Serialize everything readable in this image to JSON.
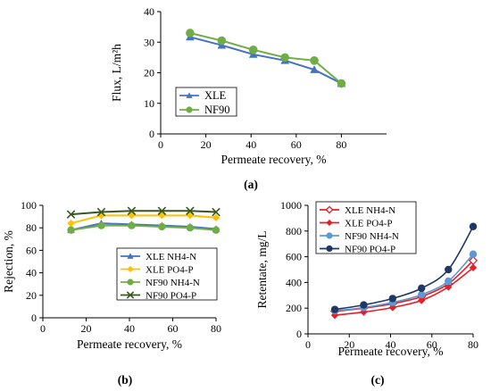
{
  "chart_data": [
    {
      "id": "a",
      "type": "line",
      "panel_label": "(a)",
      "xlabel": "Permeate recovery, %",
      "ylabel": "Flux, L/m²h",
      "xlim": [
        0,
        100
      ],
      "ylim": [
        0,
        40
      ],
      "xticks": [
        0,
        20,
        40,
        60,
        80
      ],
      "yticks": [
        0,
        10,
        20,
        30,
        40
      ],
      "grid": false,
      "legend_position": "bottom-left",
      "series": [
        {
          "name": "XLE",
          "marker": "triangle",
          "color": "#4472C4",
          "x": [
            13,
            27,
            41,
            55,
            68,
            80
          ],
          "y": [
            31.7,
            29.0,
            26.0,
            24.0,
            21.0,
            16.5
          ]
        },
        {
          "name": "NF90",
          "marker": "circle",
          "color": "#70AD47",
          "x": [
            13,
            27,
            41,
            55,
            68,
            80
          ],
          "y": [
            33.0,
            30.5,
            27.5,
            25.0,
            24.0,
            16.5
          ]
        }
      ]
    },
    {
      "id": "b",
      "type": "line",
      "panel_label": "(b)",
      "xlabel": "Permeate recovery, %",
      "ylabel": "Rejection, %",
      "xlim": [
        0,
        80
      ],
      "ylim": [
        0,
        100
      ],
      "xticks": [
        0,
        20,
        40,
        60,
        80
      ],
      "yticks": [
        0,
        20,
        40,
        60,
        80,
        100
      ],
      "grid": false,
      "legend_position": "bottom-right",
      "series": [
        {
          "name": "XLE NH4-N",
          "marker": "triangle",
          "color": "#4472C4",
          "x": [
            13,
            27,
            41,
            55,
            68,
            80
          ],
          "y": [
            78,
            84,
            83,
            82,
            81,
            79
          ]
        },
        {
          "name": "XLE PO4-P",
          "marker": "diamond",
          "color": "#FFC000",
          "x": [
            13,
            27,
            41,
            55,
            68,
            80
          ],
          "y": [
            84,
            91,
            91,
            91,
            91,
            89
          ]
        },
        {
          "name": "NF90 NH4-N",
          "marker": "circle",
          "color": "#70AD47",
          "x": [
            13,
            27,
            41,
            55,
            68,
            80
          ],
          "y": [
            78,
            82,
            82,
            81,
            80,
            78
          ]
        },
        {
          "name": "NF90 PO4-P",
          "marker": "x",
          "color": "#375623",
          "x": [
            13,
            27,
            41,
            55,
            68,
            80
          ],
          "y": [
            92,
            94,
            95,
            95,
            95,
            94
          ]
        }
      ]
    },
    {
      "id": "c",
      "type": "line",
      "panel_label": "(c)",
      "xlabel": "Permeate recovery, %",
      "ylabel": "Retentate, mg/L",
      "xlim": [
        0,
        80
      ],
      "ylim": [
        0,
        1000
      ],
      "xticks": [
        0,
        20,
        40,
        60,
        80
      ],
      "yticks": [
        0,
        200,
        400,
        600,
        800,
        1000
      ],
      "grid": false,
      "legend_position": "top-left",
      "series": [
        {
          "name": "XLE NH4-N",
          "marker": "open-diamond",
          "color": "#E3202A",
          "x": [
            13,
            27,
            41,
            55,
            68,
            80
          ],
          "y": [
            175,
            200,
            235,
            290,
            390,
            570
          ]
        },
        {
          "name": "XLE PO4-P",
          "marker": "diamond",
          "color": "#E3202A",
          "x": [
            13,
            27,
            41,
            55,
            68,
            80
          ],
          "y": [
            145,
            170,
            205,
            260,
            365,
            515
          ]
        },
        {
          "name": "NF90 NH4-N",
          "marker": "circle",
          "color": "#5B9BD5",
          "x": [
            13,
            27,
            41,
            55,
            68,
            80
          ],
          "y": [
            180,
            205,
            245,
            305,
            410,
            620
          ]
        },
        {
          "name": "NF90 PO4-P",
          "marker": "circle",
          "color": "#1F3864",
          "x": [
            13,
            27,
            41,
            55,
            68,
            80
          ],
          "y": [
            190,
            225,
            275,
            355,
            500,
            835
          ]
        }
      ]
    }
  ]
}
